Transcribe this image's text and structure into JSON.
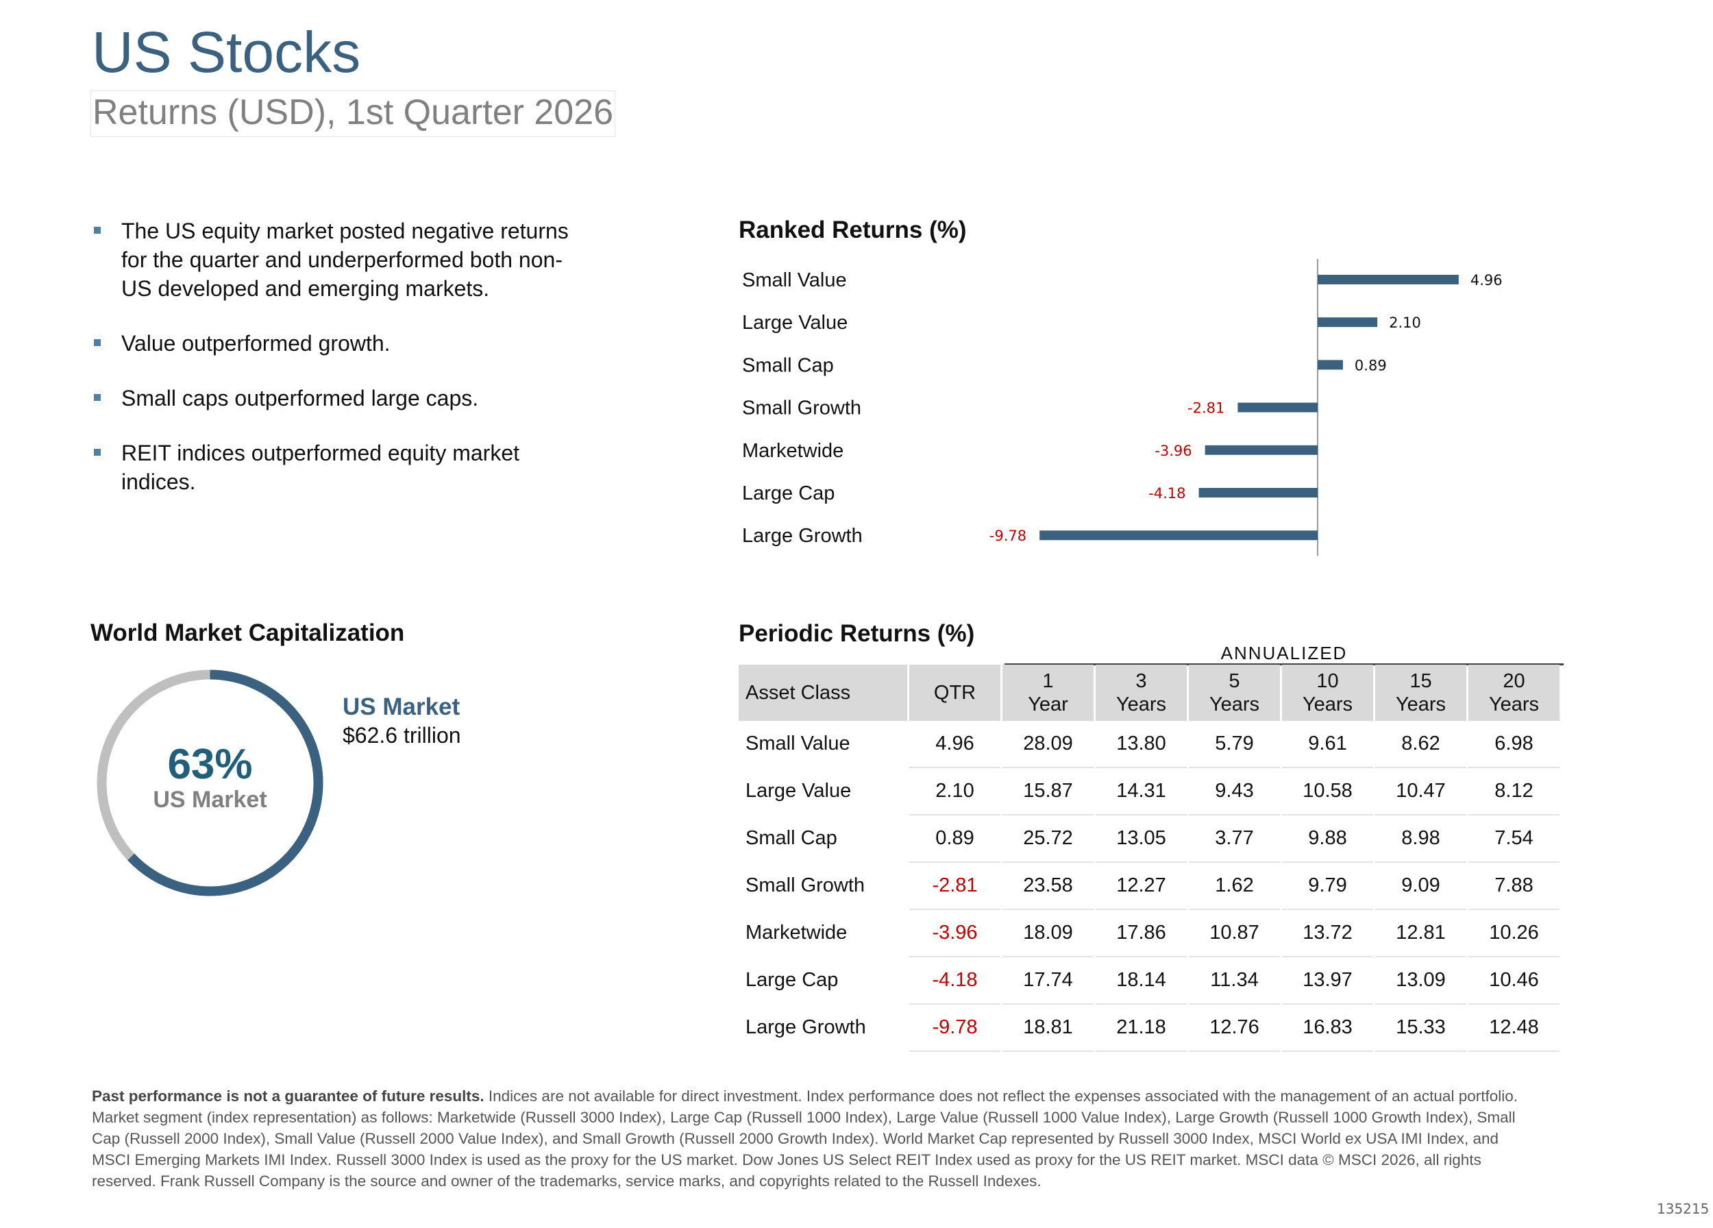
{
  "header": {
    "title": "US Stocks",
    "subtitle": "Returns (USD), 1st Quarter 2026"
  },
  "bullets": [
    "The US equity market posted negative returns for the quarter and underperformed both non-US developed and emerging markets.",
    "Value outperformed growth.",
    "Small caps outperformed large caps.",
    "REIT indices outperformed equity market indices."
  ],
  "ranked_returns": {
    "title": "Ranked Returns (%)"
  },
  "chart_data": {
    "type": "bar",
    "orientation": "horizontal",
    "categories": [
      "Small Value",
      "Large Value",
      "Small Cap",
      "Small Growth",
      "Marketwide",
      "Large Cap",
      "Large Growth"
    ],
    "values": [
      4.96,
      2.1,
      0.89,
      -2.81,
      -3.96,
      -4.18,
      -9.78
    ],
    "value_labels": [
      "4.96",
      "2.10",
      "0.89",
      "-2.81",
      "-3.96",
      "-4.18",
      "-9.78"
    ],
    "title": "Ranked Returns (%)",
    "xlabel": "",
    "ylabel": "",
    "xlim": [
      -10,
      6
    ],
    "grid": false,
    "colors": {
      "bar": "#3a6280",
      "positive_label": "#111111",
      "negative_label": "#c00000",
      "axis": "#9a9a9a"
    }
  },
  "world_market_cap": {
    "title": "World Market Capitalization",
    "percent_value": 63,
    "percent_text": "63%",
    "center_label": "US Market",
    "legend_label": "US Market",
    "legend_value": "$62.6 trillion",
    "colors": {
      "us": "#3a6280",
      "rest": "#bfbfbf",
      "percent": "#1f5f7a"
    }
  },
  "periodic_returns": {
    "title": "Periodic Returns (%)",
    "annualized_label": "ANNUALIZED",
    "headers": [
      {
        "line1": "Asset Class",
        "line2": ""
      },
      {
        "line1": "QTR",
        "line2": ""
      },
      {
        "line1": "1",
        "line2": "Year"
      },
      {
        "line1": "3",
        "line2": "Years"
      },
      {
        "line1": "5",
        "line2": "Years"
      },
      {
        "line1": "10",
        "line2": "Years"
      },
      {
        "line1": "15",
        "line2": "Years"
      },
      {
        "line1": "20",
        "line2": "Years"
      }
    ],
    "rows": [
      [
        "Small Value",
        "4.96",
        "28.09",
        "13.80",
        "5.79",
        "9.61",
        "8.62",
        "6.98"
      ],
      [
        "Large Value",
        "2.10",
        "15.87",
        "14.31",
        "9.43",
        "10.58",
        "10.47",
        "8.12"
      ],
      [
        "Small Cap",
        "0.89",
        "25.72",
        "13.05",
        "3.77",
        "9.88",
        "8.98",
        "7.54"
      ],
      [
        "Small Growth",
        "-2.81",
        "23.58",
        "12.27",
        "1.62",
        "9.79",
        "9.09",
        "7.88"
      ],
      [
        "Marketwide",
        "-3.96",
        "18.09",
        "17.86",
        "10.87",
        "13.72",
        "12.81",
        "10.26"
      ],
      [
        "Large Cap",
        "-4.18",
        "17.74",
        "18.14",
        "11.34",
        "13.97",
        "13.09",
        "10.46"
      ],
      [
        "Large Growth",
        "-9.78",
        "18.81",
        "21.18",
        "12.76",
        "16.83",
        "15.33",
        "12.48"
      ]
    ]
  },
  "footnote": {
    "bold": "Past performance is not a guarantee of future results.",
    "text": " Indices are not available for direct investment. Index performance does not reflect the expenses associated with the management of an actual portfolio. Market segment (index representation) as follows: Marketwide (Russell 3000 Index), Large Cap (Russell 1000 Index), Large Value (Russell 1000 Value Index), Large Growth (Russell 1000 Growth Index), Small Cap (Russell 2000 Index), Small Value (Russell 2000 Value Index), and Small Growth (Russell 2000 Growth Index). World Market Cap represented by Russell 3000 Index, MSCI World ex USA IMI Index, and MSCI Emerging Markets IMI Index. Russell 3000 Index is used as the proxy for the US market. Dow Jones US Select REIT Index used as proxy for the US REIT market. MSCI data © MSCI 2026, all rights reserved. Frank Russell Company is the source and owner of the trademarks, service marks, and copyrights related to the Russell Indexes."
  },
  "page_code": "135215"
}
